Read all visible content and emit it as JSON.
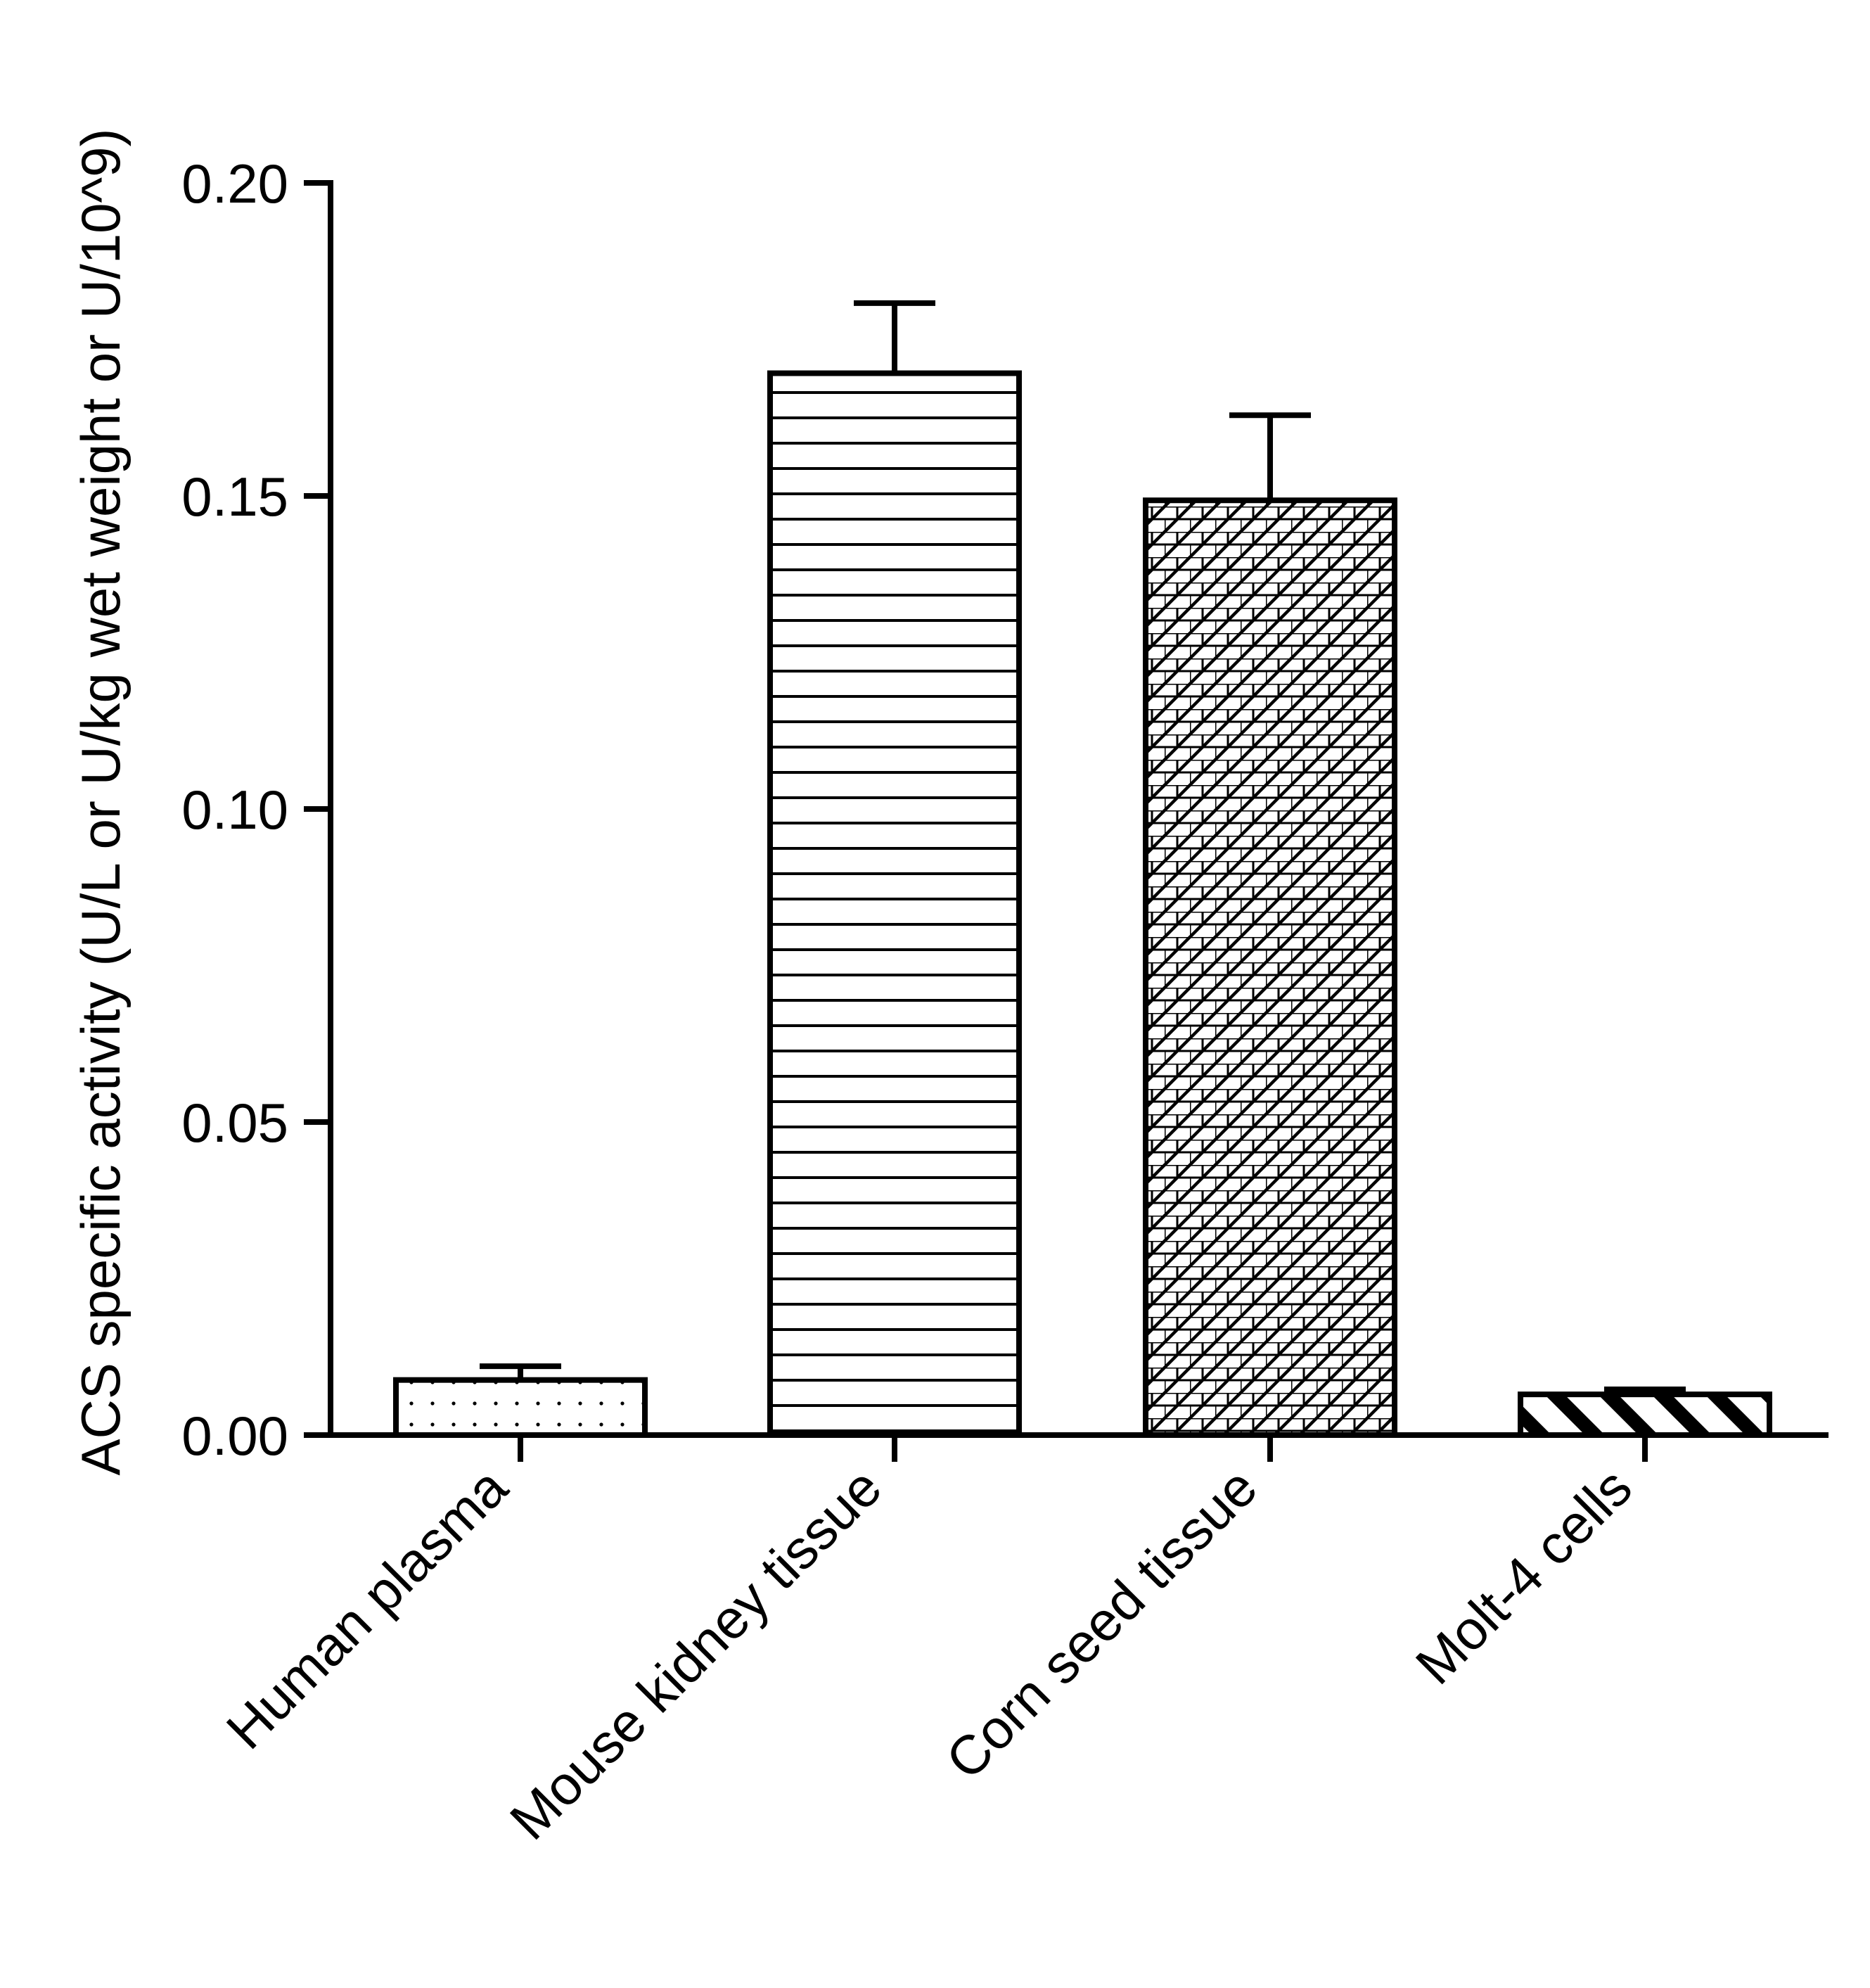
{
  "chart_data": {
    "type": "bar",
    "title": "",
    "xlabel": "",
    "ylabel": "ACS specific activity (U/L or U/kg wet weight or U/10^9)",
    "ylim": [
      0,
      0.2
    ],
    "yticks": [
      "0.00",
      "0.05",
      "0.10",
      "0.15",
      "0.20"
    ],
    "categories": [
      "Human plasma",
      "Mouse kidney tissue",
      "Corn seed tissue",
      "Molt-4 cells"
    ],
    "values": [
      0.0088,
      0.1696,
      0.1493,
      0.0065
    ],
    "error_upper": [
      0.0022,
      0.0112,
      0.0136,
      0.0008
    ],
    "fill_patterns": [
      "dotted",
      "horizontal-lines",
      "crosshatch-brick",
      "thick-diagonal-stripes"
    ],
    "bar_color": "#000000",
    "background": "#ffffff",
    "grid": false,
    "legend": "none"
  }
}
